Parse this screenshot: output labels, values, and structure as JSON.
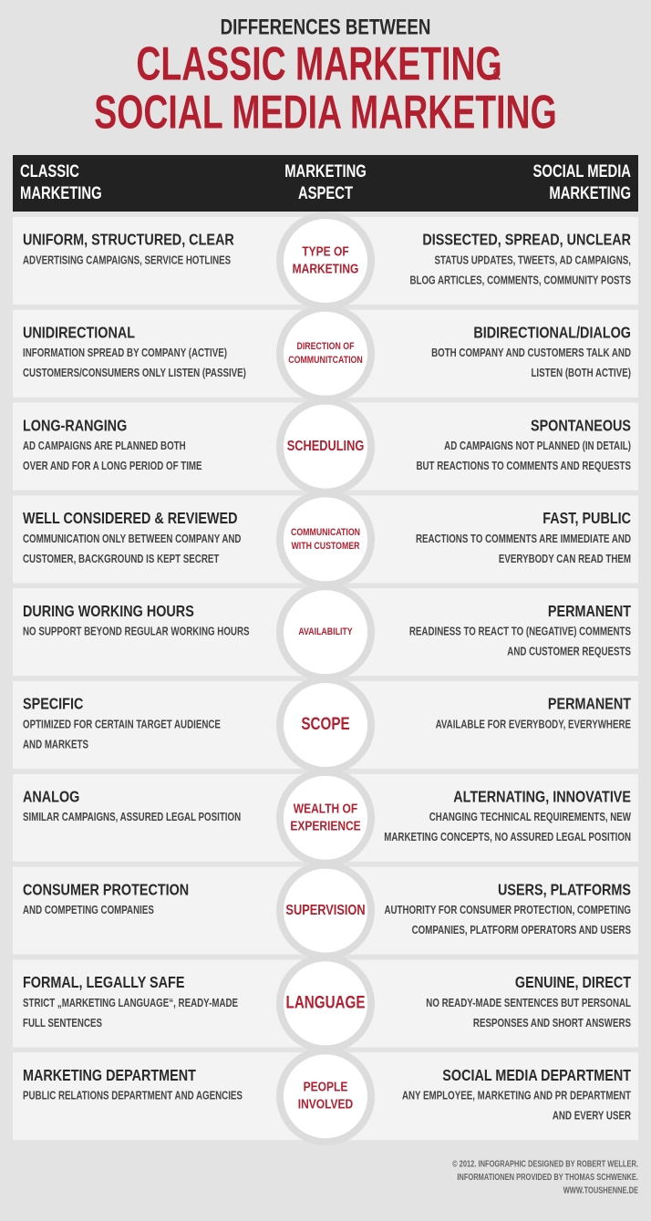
{
  "header": {
    "pretitle": "DIFFERENCES BETWEEN",
    "title_line1": "CLASSIC MARKETING",
    "ampersand": "&",
    "title_line2": "SOCIAL MEDIA MARKETING"
  },
  "table": {
    "columns": [
      [
        "CLASSIC",
        "MARKETING"
      ],
      [
        "MARKETING",
        "ASPECT"
      ],
      [
        "SOCIAL MEDIA",
        "MARKETING"
      ]
    ],
    "rows": [
      {
        "classic_title": "UNIFORM, STRUCTURED, CLEAR",
        "classic_text": [
          "ADVERTISING CAMPAIGNS, SERVICE HOTLINES"
        ],
        "aspect": [
          "TYPE OF",
          "MARKETING"
        ],
        "social_title": "DISSECTED, SPREAD, UNCLEAR",
        "social_text": [
          "STATUS UPDATES, TWEETS, AD CAMPAIGNS,",
          "BLOG ARTICLES, COMMENTS, COMMUNITY POSTS"
        ]
      },
      {
        "classic_title": "UNIDIRECTIONAL",
        "classic_text": [
          "INFORMATION SPREAD BY COMPANY (ACTIVE)",
          "CUSTOMERS/CONSUMERS ONLY LISTEN (PASSIVE)"
        ],
        "aspect": [
          "DIRECTION OF",
          "COMMUNITCATION"
        ],
        "social_title": "BIDIRECTIONAL/DIALOG",
        "social_text": [
          "BOTH COMPANY AND CUSTOMERS TALK AND",
          "LISTEN (BOTH ACTIVE)"
        ]
      },
      {
        "classic_title": "LONG-RANGING",
        "classic_text": [
          "AD CAMPAIGNS ARE PLANNED BOTH",
          "OVER AND FOR A LONG PERIOD OF TIME"
        ],
        "aspect": [
          "SCHEDULING"
        ],
        "social_title": "SPONTANEOUS",
        "social_text": [
          "AD CAMPAIGNS NOT PLANNED (IN DETAIL)",
          "BUT REACTIONS TO COMMENTS AND REQUESTS"
        ]
      },
      {
        "classic_title": "WELL CONSIDERED & REVIEWED",
        "classic_text": [
          "COMMUNICATION ONLY BETWEEN COMPANY AND",
          "CUSTOMER, BACKGROUND IS KEPT SECRET"
        ],
        "aspect": [
          "COMMUNICATION",
          "WITH CUSTOMER"
        ],
        "social_title": "FAST, PUBLIC",
        "social_text": [
          "REACTIONS TO COMMENTS ARE IMMEDIATE AND",
          "EVERYBODY CAN READ THEM"
        ]
      },
      {
        "classic_title": "DURING WORKING HOURS",
        "classic_text": [
          "NO SUPPORT BEYOND REGULAR WORKING HOURS"
        ],
        "aspect": [
          "AVAILABILITY"
        ],
        "social_title": "PERMANENT",
        "social_text": [
          "READINESS TO REACT TO (NEGATIVE) COMMENTS",
          "AND CUSTOMER REQUESTS"
        ]
      },
      {
        "classic_title": "SPECIFIC",
        "classic_text": [
          "OPTIMIZED FOR CERTAIN TARGET AUDIENCE",
          "AND MARKETS"
        ],
        "aspect": [
          "SCOPE"
        ],
        "social_title": "PERMANENT",
        "social_text": [
          "AVAILABLE FOR EVERYBODY, EVERYWHERE"
        ]
      },
      {
        "classic_title": "ANALOG",
        "classic_text": [
          "SIMILAR CAMPAIGNS, ASSURED LEGAL POSITION"
        ],
        "aspect": [
          "WEALTH OF",
          "EXPERIENCE"
        ],
        "social_title": "ALTERNATING, INNOVATIVE",
        "social_text": [
          "CHANGING TECHNICAL REQUIREMENTS, NEW",
          "MARKETING CONCEPTS, NO ASSURED LEGAL POSITION"
        ]
      },
      {
        "classic_title": "CONSUMER PROTECTION",
        "classic_text": [
          "AND COMPETING COMPANIES"
        ],
        "aspect": [
          "SUPERVISION"
        ],
        "social_title": "USERS, PLATFORMS",
        "social_text": [
          "AUTHORITY FOR CONSUMER PROTECTION, COMPETING",
          "COMPANIES, PLATFORM OPERATORS AND USERS"
        ]
      },
      {
        "classic_title": "FORMAL, LEGALLY SAFE",
        "classic_text": [
          "STRICT „MARKETING LANGUAGE“, READY-MADE",
          "FULL SENTENCES"
        ],
        "aspect": [
          "LANGUAGE"
        ],
        "social_title": "GENUINE, DIRECT",
        "social_text": [
          "NO READY-MADE SENTENCES BUT PERSONAL",
          "RESPONSES AND SHORT ANSWERS"
        ]
      },
      {
        "classic_title": "MARKETING DEPARTMENT",
        "classic_text": [
          "PUBLIC RELATIONS DEPARTMENT AND AGENCIES"
        ],
        "aspect": [
          "PEOPLE",
          "INVOLVED"
        ],
        "social_title": "SOCIAL MEDIA DEPARTMENT",
        "social_text": [
          "ANY EMPLOYEE, MARKETING AND PR DEPARTMENT",
          "AND EVERY USER"
        ]
      }
    ]
  },
  "footer": [
    "© 2012. INFOGRAPHIC DESIGNED BY ROBERT WELLER.",
    "INFORMATIONEN PROVIDED BY THOMAS SCHWENKE.",
    "WWW.TOUSHENNE.DE"
  ]
}
